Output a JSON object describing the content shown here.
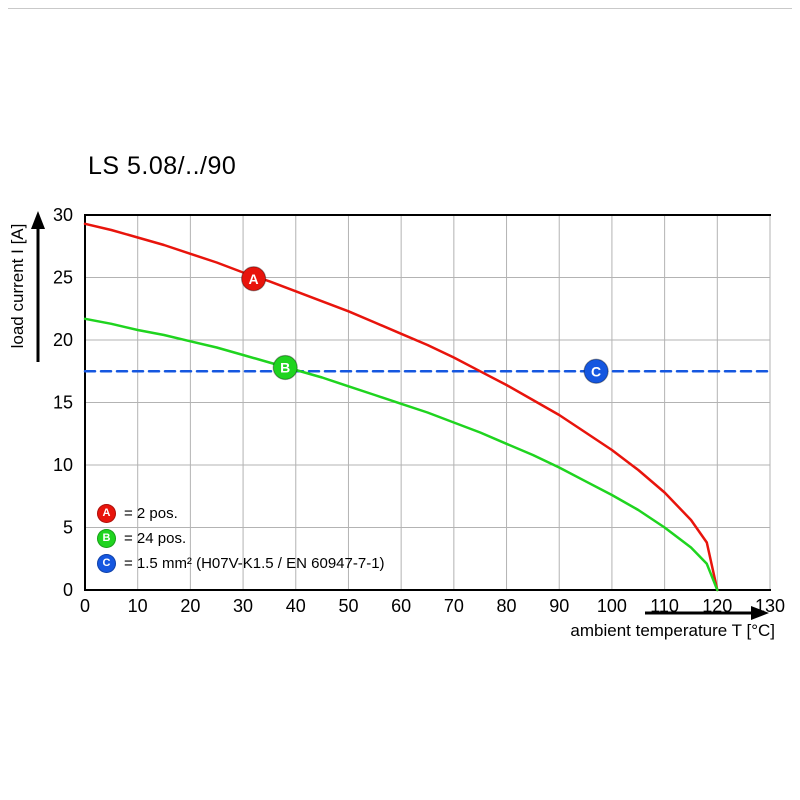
{
  "page": {
    "background": "#ffffff"
  },
  "chart_data": {
    "type": "line",
    "title": "LS 5.08/../90",
    "xlabel": "ambient temperature T [°C]",
    "ylabel": "load current I [A]",
    "xlim": [
      0,
      130
    ],
    "ylim": [
      0,
      30
    ],
    "xticks": [
      0,
      10,
      20,
      30,
      40,
      50,
      60,
      70,
      80,
      90,
      100,
      110,
      120,
      130
    ],
    "yticks": [
      0,
      5,
      10,
      15,
      20,
      25,
      30
    ],
    "grid": true,
    "grid_color": "#b3b3b3",
    "axis_color": "#000000",
    "legend_position": "inside bottom-left",
    "series": [
      {
        "id": "A",
        "legend_label": "= 2 pos.",
        "color": "#e8140c",
        "line_style": "solid",
        "marker": {
          "x": 32,
          "y": 24.9
        },
        "points": [
          [
            0,
            29.3
          ],
          [
            5,
            28.8
          ],
          [
            10,
            28.2
          ],
          [
            15,
            27.6
          ],
          [
            20,
            26.9
          ],
          [
            25,
            26.2
          ],
          [
            30,
            25.4
          ],
          [
            35,
            24.7
          ],
          [
            40,
            23.9
          ],
          [
            45,
            23.1
          ],
          [
            50,
            22.3
          ],
          [
            55,
            21.4
          ],
          [
            60,
            20.5
          ],
          [
            65,
            19.6
          ],
          [
            70,
            18.6
          ],
          [
            75,
            17.5
          ],
          [
            80,
            16.4
          ],
          [
            85,
            15.2
          ],
          [
            90,
            14.0
          ],
          [
            95,
            12.6
          ],
          [
            100,
            11.2
          ],
          [
            105,
            9.6
          ],
          [
            110,
            7.8
          ],
          [
            115,
            5.6
          ],
          [
            118,
            3.8
          ],
          [
            120,
            0
          ]
        ]
      },
      {
        "id": "B",
        "legend_label": "= 24 pos.",
        "color": "#1fd41f",
        "line_style": "solid",
        "marker": {
          "x": 38,
          "y": 17.8
        },
        "points": [
          [
            0,
            21.7
          ],
          [
            5,
            21.3
          ],
          [
            10,
            20.8
          ],
          [
            15,
            20.4
          ],
          [
            20,
            19.9
          ],
          [
            25,
            19.4
          ],
          [
            30,
            18.8
          ],
          [
            35,
            18.2
          ],
          [
            40,
            17.6
          ],
          [
            45,
            17.0
          ],
          [
            50,
            16.3
          ],
          [
            55,
            15.6
          ],
          [
            60,
            14.9
          ],
          [
            65,
            14.2
          ],
          [
            70,
            13.4
          ],
          [
            75,
            12.6
          ],
          [
            80,
            11.7
          ],
          [
            85,
            10.8
          ],
          [
            90,
            9.8
          ],
          [
            95,
            8.7
          ],
          [
            100,
            7.6
          ],
          [
            105,
            6.4
          ],
          [
            110,
            5.0
          ],
          [
            115,
            3.4
          ],
          [
            118,
            2.1
          ],
          [
            120,
            0
          ]
        ]
      },
      {
        "id": "C",
        "legend_label": "= 1.5 mm² (H07V-K1.5 / EN 60947-7-1)",
        "color": "#1557e0",
        "line_style": "dashed",
        "marker": {
          "x": 97,
          "y": 17.5
        },
        "points": [
          [
            0,
            17.5
          ],
          [
            130,
            17.5
          ]
        ]
      }
    ]
  }
}
